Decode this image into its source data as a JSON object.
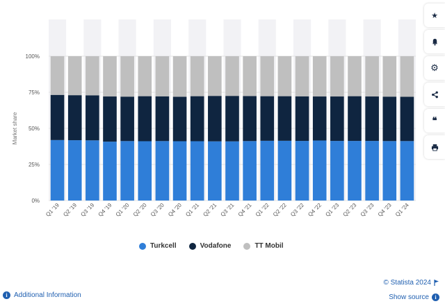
{
  "chart_data": {
    "type": "bar",
    "stacked": true,
    "ylabel": "Market share",
    "ylim": [
      0,
      100
    ],
    "yticks": [
      "0%",
      "25%",
      "50%",
      "75%",
      "100%"
    ],
    "categories": [
      "Q1 '19",
      "Q2 '19",
      "Q3 '19",
      "Q4 '19",
      "Q1 '20",
      "Q2 '20",
      "Q3 '20",
      "Q4 '20",
      "Q1 '21",
      "Q2 '21",
      "Q3 '21",
      "Q4 '21",
      "Q1 '22",
      "Q2 '22",
      "Q3 '22",
      "Q4 '22",
      "Q1 '23",
      "Q2 '23",
      "Q3 '23",
      "Q4 '23",
      "Q1 '24"
    ],
    "series": [
      {
        "name": "Turkcell",
        "color": "#2f7ed8",
        "values": [
          41.9,
          41.8,
          41.7,
          40.8,
          41.2,
          41.1,
          41.2,
          41.1,
          41.1,
          41.0,
          41.0,
          41.2,
          41.4,
          41.4,
          41.3,
          41.6,
          41.3,
          41.3,
          41.3,
          41.2,
          41.2
        ]
      },
      {
        "name": "Vodafone",
        "color": "#0f2540",
        "values": [
          31.3,
          31.2,
          31.2,
          31.3,
          30.8,
          31.2,
          31.0,
          30.8,
          31.2,
          31.5,
          31.5,
          31.2,
          30.9,
          30.9,
          30.9,
          30.5,
          30.8,
          31.0,
          30.8,
          30.8,
          30.7
        ]
      },
      {
        "name": "TT Mobil",
        "color": "#bfbfbf",
        "values": [
          26.8,
          27.0,
          27.1,
          27.9,
          28.0,
          27.7,
          27.8,
          28.1,
          27.7,
          27.5,
          27.5,
          27.6,
          27.7,
          27.7,
          27.8,
          27.9,
          27.9,
          27.7,
          27.9,
          28.0,
          28.1
        ]
      }
    ],
    "legend_position": "bottom",
    "grid": true
  },
  "legend": {
    "items": [
      {
        "label": "Turkcell",
        "color": "#2f7ed8"
      },
      {
        "label": "Vodafone",
        "color": "#0f2540"
      },
      {
        "label": "TT Mobil",
        "color": "#bfbfbf"
      }
    ]
  },
  "sidebar": {
    "buttons": [
      {
        "name": "star-icon",
        "glyph": "★"
      },
      {
        "name": "bell-icon",
        "glyph": "🔔"
      },
      {
        "name": "gear-icon",
        "glyph": "⚙"
      },
      {
        "name": "share-icon",
        "glyph": "⋖"
      },
      {
        "name": "quote-icon",
        "glyph": "❝"
      },
      {
        "name": "print-icon",
        "glyph": "⎙"
      }
    ]
  },
  "footer": {
    "additional_info": "Additional Information",
    "copyright": "© Statista 2024",
    "show_source": "Show source"
  }
}
